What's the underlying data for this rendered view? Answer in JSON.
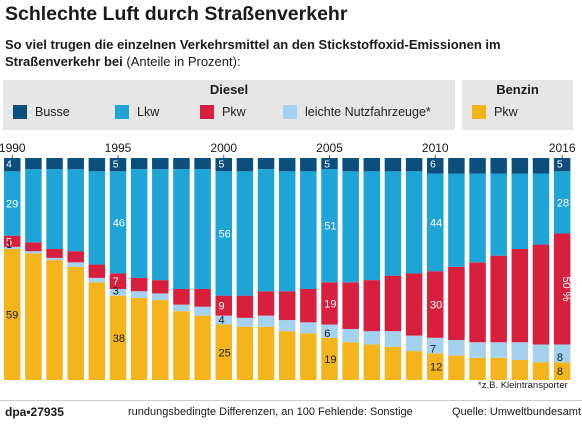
{
  "header": {
    "title": "Schlechte Luft durch Straßenverkehr",
    "subtitle_bold": "So viel trugen die einzelnen Verkehrsmittel an den Stickstoffoxid-Emissionen im Straßenverkehr bei",
    "subtitle_rest": " (Anteile in Prozent):"
  },
  "legend": {
    "diesel_heading": "Diesel",
    "benzin_heading": "Benzin",
    "items": [
      {
        "label": "Busse",
        "color": "#0b4f7c"
      },
      {
        "label": "Lkw",
        "color": "#1fa4d8"
      },
      {
        "label": "Pkw",
        "color": "#d91f3e"
      },
      {
        "label": "leichte Nutzfahrzeuge*",
        "color": "#a3d1ee"
      },
      {
        "label": "Pkw",
        "color": "#f4b51c"
      }
    ]
  },
  "chart_data": {
    "type": "bar",
    "stacked": true,
    "ylim": [
      0,
      100
    ],
    "categories": [
      1990,
      1991,
      1992,
      1993,
      1994,
      1995,
      1996,
      1997,
      1998,
      1999,
      2000,
      2001,
      2002,
      2003,
      2004,
      2005,
      2006,
      2007,
      2008,
      2009,
      2010,
      2011,
      2012,
      2013,
      2014,
      2015,
      2016
    ],
    "tick_labels": [
      "1990",
      "",
      "",
      "",
      "",
      "1995",
      "",
      "",
      "",
      "",
      "2000",
      "",
      "",
      "",
      "",
      "2005",
      "",
      "",
      "",
      "",
      "2010",
      "",
      "",
      "",
      "",
      "",
      "2016"
    ],
    "series": [
      {
        "name": "Benzin Pkw",
        "color": "#f4b51c",
        "values": [
          59,
          57,
          54,
          51,
          44,
          38,
          37,
          36,
          31,
          29,
          25,
          24,
          24,
          22,
          21,
          19,
          17,
          16,
          15,
          13,
          12,
          11,
          10,
          10,
          9,
          8,
          8
        ]
      },
      {
        "name": "leichte Nutzfahrzeuge*",
        "color": "#a3d1ee",
        "values": [
          1,
          1,
          1,
          2,
          2,
          3,
          3,
          3,
          3,
          4,
          4,
          4,
          5,
          5,
          5,
          6,
          6,
          6,
          7,
          7,
          7,
          7,
          7,
          7,
          8,
          8,
          8
        ]
      },
      {
        "name": "Diesel Pkw",
        "color": "#d91f3e",
        "values": [
          5,
          4,
          4,
          5,
          6,
          7,
          6,
          6,
          7,
          8,
          9,
          10,
          11,
          13,
          15,
          19,
          21,
          23,
          25,
          28,
          30,
          33,
          36,
          39,
          42,
          45,
          50
        ]
      },
      {
        "name": "Lkw",
        "color": "#1fa4d8",
        "values": [
          29,
          33,
          36,
          37,
          42,
          46,
          49,
          50,
          54,
          54,
          56,
          56,
          55,
          54,
          53,
          51,
          50,
          49,
          47,
          46,
          44,
          42,
          40,
          37,
          34,
          32,
          28
        ]
      },
      {
        "name": "Busse",
        "color": "#0b4f7c",
        "values": [
          4,
          4,
          4,
          4,
          5,
          5,
          5,
          5,
          5,
          5,
          5,
          5,
          5,
          5,
          5,
          5,
          5,
          5,
          5,
          5,
          6,
          6,
          6,
          6,
          6,
          6,
          5
        ]
      }
    ],
    "data_labels": [
      {
        "year": 1990,
        "series": "Busse",
        "text": "4"
      },
      {
        "year": 1990,
        "series": "Lkw",
        "text": "29"
      },
      {
        "year": 1990,
        "series": "Diesel Pkw",
        "text": "5"
      },
      {
        "year": 1990,
        "series": "Benzin Pkw",
        "text": "59"
      },
      {
        "year": 1990,
        "series": "leichte Nutzfahrzeuge*",
        "text": "1"
      },
      {
        "year": 1995,
        "series": "Busse",
        "text": "5"
      },
      {
        "year": 1995,
        "series": "Lkw",
        "text": "46"
      },
      {
        "year": 1995,
        "series": "Diesel Pkw",
        "text": "7"
      },
      {
        "year": 1995,
        "series": "Benzin Pkw",
        "text": "38"
      },
      {
        "year": 1995,
        "series": "leichte Nutzfahrzeuge*",
        "text": "3"
      },
      {
        "year": 2000,
        "series": "Busse",
        "text": "5"
      },
      {
        "year": 2000,
        "series": "Lkw",
        "text": "56"
      },
      {
        "year": 2000,
        "series": "Diesel Pkw",
        "text": "9"
      },
      {
        "year": 2000,
        "series": "Benzin Pkw",
        "text": "25"
      },
      {
        "year": 2000,
        "series": "leichte Nutzfahrzeuge*",
        "text": "4"
      },
      {
        "year": 2005,
        "series": "Busse",
        "text": "5"
      },
      {
        "year": 2005,
        "series": "Lkw",
        "text": "51"
      },
      {
        "year": 2005,
        "series": "Diesel Pkw",
        "text": "19"
      },
      {
        "year": 2005,
        "series": "Benzin Pkw",
        "text": "19"
      },
      {
        "year": 2005,
        "series": "leichte Nutzfahrzeuge*",
        "text": "6"
      },
      {
        "year": 2010,
        "series": "Busse",
        "text": "6"
      },
      {
        "year": 2010,
        "series": "Lkw",
        "text": "44"
      },
      {
        "year": 2010,
        "series": "Diesel Pkw",
        "text": "30"
      },
      {
        "year": 2010,
        "series": "Benzin Pkw",
        "text": "12"
      },
      {
        "year": 2010,
        "series": "leichte Nutzfahrzeuge*",
        "text": "7"
      },
      {
        "year": 2016,
        "series": "Busse",
        "text": "5"
      },
      {
        "year": 2016,
        "series": "Lkw",
        "text": "28"
      },
      {
        "year": 2016,
        "series": "Diesel Pkw",
        "text": "50 %"
      },
      {
        "year": 2016,
        "series": "Benzin Pkw",
        "text": "8"
      },
      {
        "year": 2016,
        "series": "leichte Nutzfahrzeuge*",
        "text": "8"
      }
    ]
  },
  "footnote": "*z.B. Kleintransporter",
  "footer": {
    "id": "dpa•27935",
    "note": "rundungsbedingte Differenzen, an 100 Fehlende: Sonstige",
    "source": "Quelle: Umweltbundesamt"
  }
}
